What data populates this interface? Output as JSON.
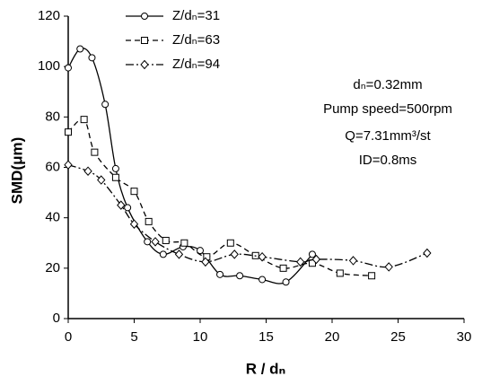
{
  "chart_data": {
    "type": "line",
    "xlabel": "R / dₙ",
    "ylabel": "SMD(μm)",
    "xlim": [
      0,
      30
    ],
    "xticks": [
      0,
      5,
      10,
      15,
      20,
      25,
      30
    ],
    "ylim": [
      0,
      120
    ],
    "yticks": [
      0,
      20,
      40,
      60,
      80,
      100,
      120
    ],
    "annotations": [
      "dₙ=0.32mm",
      "Pump speed=500rpm",
      "Q=7.31mm³/st",
      "ID=0.8ms"
    ],
    "series": [
      {
        "name": "Z/dₙ=31",
        "color": "#000000",
        "marker": "circle",
        "dash": "none",
        "x": [
          0,
          0.9,
          1.8,
          2.8,
          3.6,
          4.5,
          6,
          7.2,
          8.7,
          10,
          11.5,
          13,
          14.7,
          16.5,
          18.5
        ],
        "values": [
          99.5,
          107,
          103.5,
          85,
          59.5,
          44,
          30.5,
          25.5,
          28.5,
          27,
          17.5,
          17,
          15.5,
          14.5,
          25.5
        ]
      },
      {
        "name": "Z/dₙ=63",
        "color": "#000000",
        "marker": "square",
        "dash": "6,4",
        "x": [
          0,
          1.2,
          2,
          3.6,
          5,
          6.1,
          7.4,
          8.8,
          10.5,
          12.3,
          14.2,
          16.3,
          18.5,
          20.6,
          23
        ],
        "values": [
          74,
          79,
          66,
          56,
          50.5,
          38.5,
          31,
          30,
          24.5,
          30,
          25,
          20,
          22,
          18,
          17
        ]
      },
      {
        "name": "Z/dₙ=94",
        "color": "#000000",
        "marker": "diamond",
        "dash": "9,3,2,3",
        "x": [
          0,
          1.5,
          2.5,
          4,
          5,
          6.6,
          8.4,
          10.4,
          12.6,
          14.7,
          17.6,
          18.8,
          21.6,
          24.3,
          27.2
        ],
        "values": [
          61,
          58.5,
          55,
          45,
          37.5,
          30.5,
          25.5,
          22.5,
          25.5,
          24.5,
          22.5,
          23.5,
          23,
          20.5,
          26
        ]
      }
    ]
  }
}
